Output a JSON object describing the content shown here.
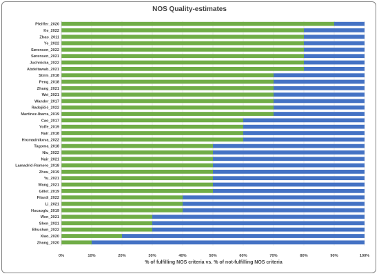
{
  "chart_data": {
    "type": "bar",
    "orientation": "horizontal",
    "stacked": true,
    "percent_stacked": true,
    "title": "NOS Quality-estimates",
    "xlabel": "% of fulfilling NOS criteria vs. % of not-fulfilling NOS criteria",
    "ylabel": "",
    "xlim": [
      0,
      100
    ],
    "xticks": [
      "0%",
      "10%",
      "20%",
      "30%",
      "40%",
      "50%",
      "60%",
      "70%",
      "80%",
      "90%",
      "100%"
    ],
    "grid": true,
    "legend": "none",
    "colors": {
      "fulfilling": "#70ad47",
      "not_fulfilling": "#4472c4"
    },
    "categories": [
      "Pfeiffer_2020",
      "Ke_2022",
      "Zhao_2011",
      "Ye_2022",
      "Sørensen_2022",
      "Sørensen_2021",
      "Juchnicka_2022",
      "Abdeltawab_2021",
      "Stirm_2018",
      "Peng_2018",
      "Zhang_2021",
      "Wei_2021",
      "Wander_2017",
      "Radojičić_2022",
      "Martinez-Ibarra_2019",
      "Cao_2017",
      "Yoffe_2019",
      "Nair_2018",
      "Hromadnikova_2022",
      "Tagoma_2018",
      "Niu_2022",
      "Nair_2021",
      "Lamadrid-Romero_2018",
      "Zhou_2019",
      "Yu_2021",
      "Wang_2021",
      "Gillet_2019",
      "Filardi_2022",
      "Li_2021",
      "Hocaoglu_2019",
      "Wen_2021",
      "Shen_2021",
      "Bhushan_2022",
      "Xiao_2020",
      "Zhang_2020"
    ],
    "series": [
      {
        "values": [
          90,
          80,
          80,
          80,
          80,
          80,
          80,
          80,
          70,
          70,
          70,
          70,
          70,
          70,
          70,
          60,
          60,
          60,
          60,
          50,
          50,
          50,
          50,
          50,
          50,
          50,
          50,
          40,
          40,
          40,
          30,
          30,
          30,
          20,
          10
        ]
      },
      {
        "values": [
          10,
          20,
          20,
          20,
          20,
          20,
          20,
          20,
          30,
          30,
          30,
          30,
          30,
          30,
          30,
          40,
          40,
          40,
          40,
          50,
          50,
          50,
          50,
          50,
          50,
          50,
          50,
          60,
          60,
          60,
          70,
          70,
          70,
          80,
          90
        ]
      }
    ]
  }
}
